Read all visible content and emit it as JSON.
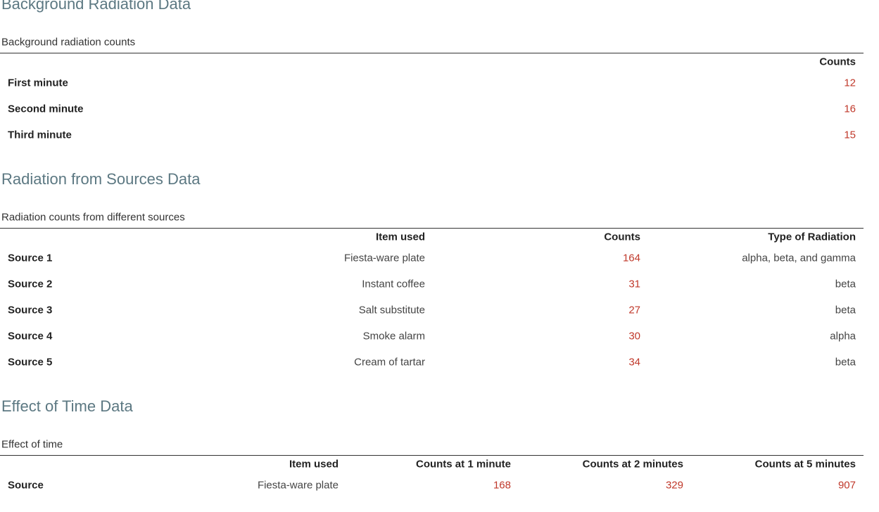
{
  "sections": [
    {
      "title": "Background Radiation Data",
      "caption": "Background radiation counts",
      "columns": [
        "Counts"
      ],
      "rows": [
        {
          "label": "First minute",
          "cells": [
            12
          ]
        },
        {
          "label": "Second minute",
          "cells": [
            16
          ]
        },
        {
          "label": "Third minute",
          "cells": [
            15
          ]
        }
      ]
    },
    {
      "title": "Radiation from Sources Data",
      "caption": "Radiation counts from different sources",
      "columns": [
        "Item used",
        "Counts",
        "Type of Radiation"
      ],
      "rows": [
        {
          "label": "Source 1",
          "cells": [
            "Fiesta-ware plate",
            164,
            "alpha, beta, and gamma"
          ]
        },
        {
          "label": "Source 2",
          "cells": [
            "Instant coffee",
            31,
            "beta"
          ]
        },
        {
          "label": "Source 3",
          "cells": [
            "Salt substitute",
            27,
            "beta"
          ]
        },
        {
          "label": "Source 4",
          "cells": [
            "Smoke alarm",
            30,
            "alpha"
          ]
        },
        {
          "label": "Source 5",
          "cells": [
            "Cream of tartar",
            34,
            "beta"
          ]
        }
      ]
    },
    {
      "title": "Effect of Time Data",
      "caption": "Effect of time",
      "columns": [
        "Item used",
        "Counts at 1 minute",
        "Counts at 2 minutes",
        "Counts at 5 minutes"
      ],
      "rows": [
        {
          "label": "Source",
          "cells": [
            "Fiesta-ware plate",
            168,
            329,
            907
          ]
        }
      ]
    }
  ]
}
